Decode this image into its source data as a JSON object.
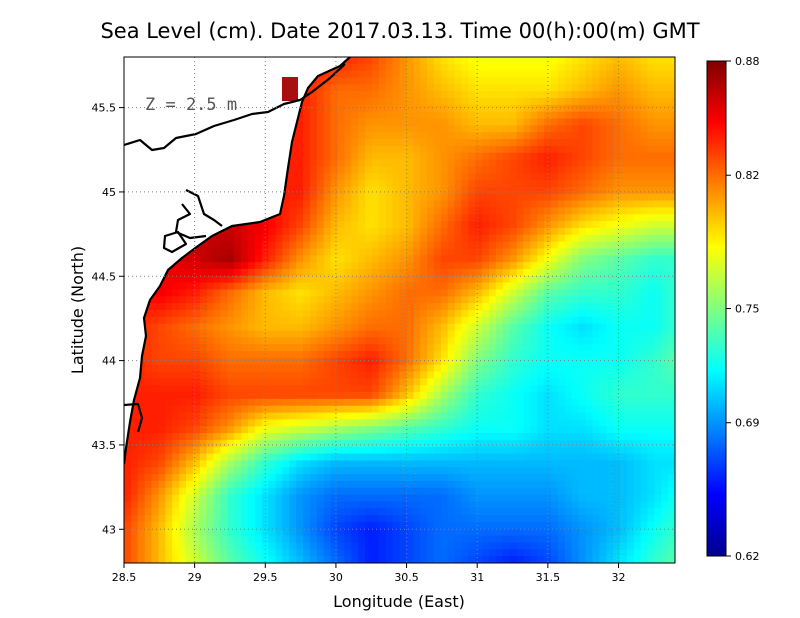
{
  "chart_data": {
    "type": "heatmap",
    "title": "Sea Level (cm). Date 2017.03.13. Time 00(h):00(m) GMT",
    "xlabel": "Longitude (East)",
    "ylabel": "Latitude (North)",
    "annotation": "Z = 2.5 m",
    "xlim": [
      28.5,
      32.4
    ],
    "ylim": [
      42.8,
      45.8
    ],
    "x_ticks": [
      "28.5",
      "29",
      "29.5",
      "30",
      "30.5",
      "31",
      "31.5",
      "32"
    ],
    "x_tick_values": [
      28.5,
      29,
      29.5,
      30,
      30.5,
      31,
      31.5,
      32
    ],
    "y_ticks": [
      "43",
      "43.5",
      "44",
      "44.5",
      "45",
      "45.5"
    ],
    "y_tick_values": [
      43,
      43.5,
      44,
      44.5,
      45,
      45.5
    ],
    "grid": true,
    "colorbar": {
      "min": 0.62,
      "max": 0.88,
      "tick_labels": [
        "0.88",
        "0.82",
        "0.75",
        "0.69",
        "0.62"
      ],
      "tick_values": [
        0.88,
        0.82,
        0.75,
        0.69,
        0.62
      ]
    },
    "colormap": [
      "#00008f",
      "#0000ff",
      "#0080ff",
      "#00ffff",
      "#80ff80",
      "#ffff00",
      "#ff8000",
      "#ff0000",
      "#800000"
    ],
    "grid_lon": [
      28.5,
      28.75,
      29.0,
      29.25,
      29.5,
      29.75,
      30.0,
      30.25,
      30.5,
      30.75,
      31.0,
      31.25,
      31.5,
      31.75,
      32.0,
      32.25,
      32.4
    ],
    "grid_lat": [
      45.8,
      45.6,
      45.4,
      45.2,
      45.0,
      44.8,
      44.6,
      44.4,
      44.2,
      44.0,
      43.8,
      43.6,
      43.4,
      43.2,
      43.0,
      42.8
    ],
    "values": [
      [
        null,
        null,
        null,
        null,
        null,
        0.85,
        0.84,
        0.83,
        0.81,
        0.79,
        0.78,
        0.78,
        0.78,
        0.79,
        0.8,
        0.79,
        0.79
      ],
      [
        null,
        null,
        null,
        null,
        null,
        0.84,
        0.82,
        0.82,
        0.81,
        0.8,
        0.79,
        0.79,
        0.79,
        0.8,
        0.81,
        0.8,
        0.8
      ],
      [
        null,
        null,
        null,
        null,
        null,
        0.84,
        0.82,
        0.81,
        0.81,
        0.81,
        0.8,
        0.8,
        0.82,
        0.83,
        0.82,
        0.81,
        0.81
      ],
      [
        null,
        null,
        null,
        null,
        null,
        0.84,
        0.82,
        0.8,
        0.8,
        0.81,
        0.82,
        0.83,
        0.84,
        0.83,
        0.82,
        0.82,
        0.82
      ],
      [
        null,
        null,
        null,
        null,
        null,
        0.84,
        0.81,
        0.79,
        0.8,
        0.81,
        0.83,
        0.83,
        0.83,
        0.82,
        0.81,
        0.81,
        0.81
      ],
      [
        null,
        null,
        null,
        0.86,
        0.85,
        0.83,
        0.8,
        0.79,
        0.8,
        0.82,
        0.84,
        0.83,
        0.81,
        0.79,
        0.78,
        0.77,
        0.77
      ],
      [
        null,
        0.85,
        0.86,
        0.87,
        0.84,
        0.81,
        0.79,
        0.8,
        0.81,
        0.83,
        0.83,
        0.81,
        0.78,
        0.75,
        0.74,
        0.73,
        0.73
      ],
      [
        0.84,
        0.85,
        0.84,
        0.82,
        0.8,
        0.79,
        0.8,
        0.81,
        0.82,
        0.82,
        0.8,
        0.77,
        0.74,
        0.73,
        0.73,
        0.72,
        0.73
      ],
      [
        0.84,
        0.83,
        0.82,
        0.81,
        0.8,
        0.8,
        0.81,
        0.82,
        0.82,
        0.8,
        0.77,
        0.74,
        0.72,
        0.71,
        0.72,
        0.72,
        0.73
      ],
      [
        0.84,
        0.83,
        0.83,
        0.82,
        0.82,
        0.82,
        0.83,
        0.84,
        0.82,
        0.79,
        0.75,
        0.73,
        0.72,
        0.72,
        0.72,
        0.73,
        0.74
      ],
      [
        0.84,
        0.84,
        0.84,
        0.83,
        0.83,
        0.83,
        0.83,
        0.83,
        0.8,
        0.76,
        0.73,
        0.72,
        0.71,
        0.72,
        0.73,
        0.73,
        0.73
      ],
      [
        0.84,
        0.84,
        0.83,
        0.81,
        0.78,
        0.77,
        0.76,
        0.75,
        0.74,
        0.73,
        0.72,
        0.72,
        0.71,
        0.71,
        0.72,
        0.72,
        0.72
      ],
      [
        0.84,
        0.83,
        0.8,
        0.76,
        0.73,
        0.71,
        0.7,
        0.7,
        0.7,
        0.7,
        0.7,
        0.7,
        0.7,
        0.7,
        0.7,
        0.71,
        0.71
      ],
      [
        0.84,
        0.81,
        0.77,
        0.73,
        0.71,
        0.69,
        0.68,
        0.68,
        0.68,
        0.68,
        0.69,
        0.69,
        0.69,
        0.7,
        0.7,
        0.71,
        0.72
      ],
      [
        0.83,
        0.8,
        0.76,
        0.73,
        0.71,
        0.69,
        0.67,
        0.66,
        0.67,
        0.68,
        0.68,
        0.68,
        0.68,
        0.69,
        0.7,
        0.72,
        0.73
      ],
      [
        0.83,
        0.8,
        0.77,
        0.74,
        0.72,
        0.7,
        0.68,
        0.66,
        0.67,
        0.68,
        0.67,
        0.66,
        0.67,
        0.69,
        0.71,
        0.73,
        0.74
      ]
    ]
  }
}
